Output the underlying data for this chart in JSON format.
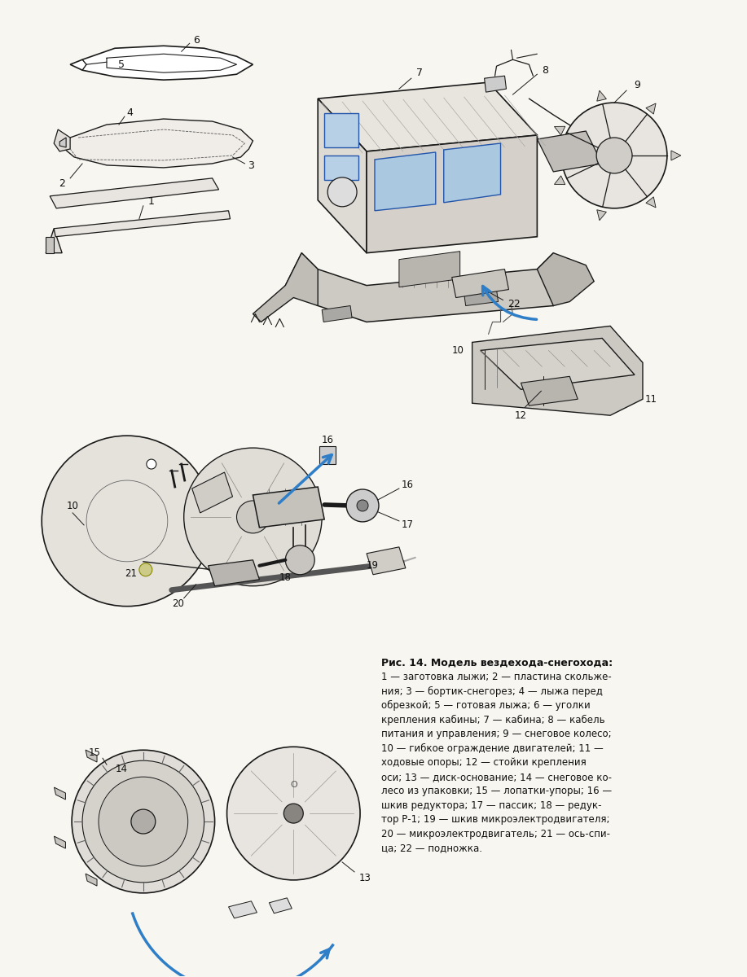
{
  "background_color": "#f8f6f0",
  "figure_width": 9.17,
  "figure_height": 12.0,
  "arrow_color": "#2e7ec8",
  "line_color": "#1a1a1a",
  "light_gray": "#d8d5cf",
  "mid_gray": "#b8b5ae",
  "dark_gray": "#888480",
  "hatch_color": "#999590",
  "caption_title": "Рис. 14. Модель вездехода-снегохода:",
  "caption_lines": [
    "1 — заготовка лыжи; 2 — пластина скольже-",
    "ния; 3 — бортик-снегорез; 4 — лыжа перед",
    "обрезкой; 5 — готовая лыжа; 6 — уголки",
    "крепления кабины; 7 — кабина; 8 — кабель",
    "питания и управления; 9 — снеговое колесо;",
    "10 — гибкое ограждение двигателей; 11 —",
    "ходовые опоры; 12 — стойки крепления",
    "оси; 13 — диск-основание; 14 — снеговое ко-",
    "лесо из упаковки; 15 — лопатки-упоры; 16 —",
    "шкив редуктора; 17 — пассик; 18 — редук-",
    "тор Р-1; 19 — шкив микроэлектродвигателя;",
    "20 — микроэлектродвигатель; 21 — ось-спи-",
    "ца; 22 — подножка."
  ]
}
